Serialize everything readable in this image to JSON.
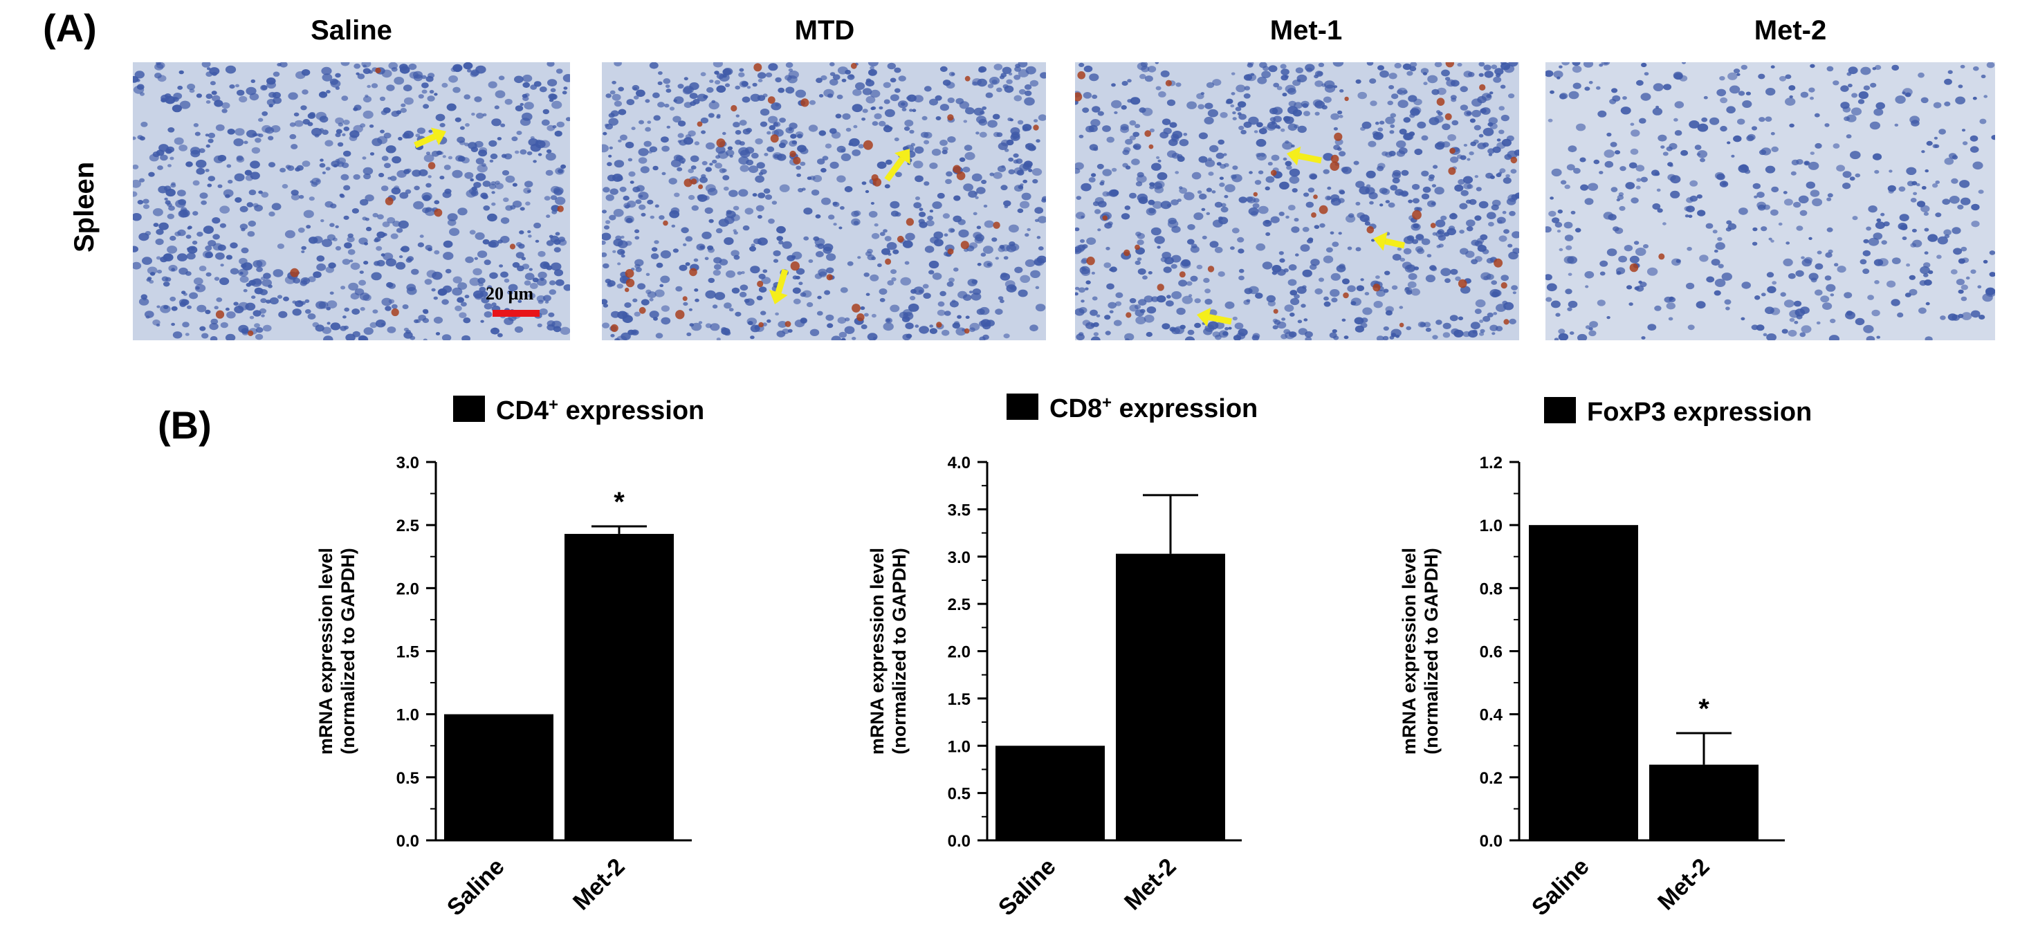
{
  "panel_a": {
    "letter": "(A)",
    "row_label": "Spleen",
    "columns": [
      "Saline",
      "MTD",
      "Met-1",
      "Met-2"
    ],
    "scale_bar_label": "20 µm",
    "colors": {
      "stain_background": "#c9d3e6",
      "nuclei": "#3f5aa8",
      "positive_cells": "#a8401e",
      "arrow": "#f5ee1a",
      "scale_bar": "#e8141a"
    }
  },
  "panel_b": {
    "letter": "(B)"
  },
  "chart_data": [
    {
      "type": "bar",
      "title": "CD4",
      "title_sup": "+",
      "title_suffix": " expression",
      "categories": [
        "Saline",
        "Met-2"
      ],
      "values": [
        1.0,
        2.43
      ],
      "errors": [
        0,
        0.06
      ],
      "significance": [
        "",
        "*"
      ],
      "ylabel_line1": "mRNA expression level",
      "ylabel_line2": "(normalized to GAPDH)",
      "ylim": [
        0,
        3.0
      ],
      "yticks": [
        "0.0",
        "0.5",
        "1.0",
        "1.5",
        "2.0",
        "2.5",
        "3.0"
      ],
      "color": "#000000"
    },
    {
      "type": "bar",
      "title": "CD8",
      "title_sup": "+",
      "title_suffix": " expression",
      "categories": [
        "Saline",
        "Met-2"
      ],
      "values": [
        1.0,
        3.03
      ],
      "errors": [
        0,
        0.62
      ],
      "significance": [
        "",
        ""
      ],
      "ylabel_line1": "mRNA expression level",
      "ylabel_line2": "(normalized to GAPDH)",
      "ylim": [
        0,
        4.0
      ],
      "yticks": [
        "0.0",
        "0.5",
        "1.0",
        "1.5",
        "2.0",
        "2.5",
        "3.0",
        "3.5",
        "4.0"
      ],
      "color": "#000000"
    },
    {
      "type": "bar",
      "title": "FoxP3 expression",
      "title_sup": "",
      "title_suffix": "",
      "categories": [
        "Saline",
        "Met-2"
      ],
      "values": [
        1.0,
        0.24
      ],
      "errors": [
        0,
        0.1
      ],
      "significance": [
        "",
        "*"
      ],
      "ylabel_line1": "mRNA expression level",
      "ylabel_line2": "(normalized to GAPDH)",
      "ylim": [
        0,
        1.2
      ],
      "yticks": [
        "0.0",
        "0.2",
        "0.4",
        "0.6",
        "0.8",
        "1.0",
        "1.2"
      ],
      "color": "#000000"
    }
  ]
}
